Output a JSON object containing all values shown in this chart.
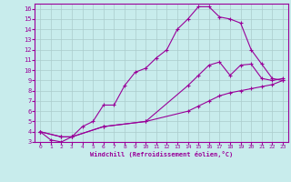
{
  "xlabel": "Windchill (Refroidissement éolien,°C)",
  "bg_color": "#c8ecec",
  "line_color": "#990099",
  "grid_color": "#aacccc",
  "xlim": [
    -0.5,
    23.5
  ],
  "ylim": [
    3,
    16.5
  ],
  "xticks": [
    0,
    1,
    2,
    3,
    4,
    5,
    6,
    7,
    8,
    9,
    10,
    11,
    12,
    13,
    14,
    15,
    16,
    17,
    18,
    19,
    20,
    21,
    22,
    23
  ],
  "yticks": [
    3,
    4,
    5,
    6,
    7,
    8,
    9,
    10,
    11,
    12,
    13,
    14,
    15,
    16
  ],
  "curve1_x": [
    0,
    1,
    2,
    3,
    4,
    5,
    6,
    7,
    8,
    9,
    10,
    11,
    12,
    13,
    14,
    15,
    16,
    17,
    18,
    19,
    20,
    21,
    22,
    23
  ],
  "curve1_y": [
    4.0,
    3.2,
    3.0,
    3.5,
    4.5,
    5.0,
    6.6,
    6.6,
    8.5,
    9.8,
    10.2,
    11.2,
    12.0,
    14.0,
    15.0,
    16.2,
    16.2,
    15.2,
    15.0,
    14.6,
    12.0,
    10.6,
    9.2,
    9.0
  ],
  "curve2_x": [
    0,
    2,
    3,
    6,
    10,
    14,
    15,
    16,
    17,
    18,
    19,
    20,
    21,
    22,
    23
  ],
  "curve2_y": [
    4.0,
    3.5,
    3.5,
    4.5,
    5.0,
    8.5,
    9.5,
    10.5,
    10.8,
    9.5,
    10.5,
    10.6,
    9.2,
    9.0,
    9.2
  ],
  "curve3_x": [
    0,
    2,
    3,
    6,
    10,
    14,
    15,
    16,
    17,
    18,
    19,
    20,
    21,
    22,
    23
  ],
  "curve3_y": [
    4.0,
    3.5,
    3.5,
    4.5,
    5.0,
    6.0,
    6.5,
    7.0,
    7.5,
    7.8,
    8.0,
    8.2,
    8.4,
    8.6,
    9.0
  ]
}
